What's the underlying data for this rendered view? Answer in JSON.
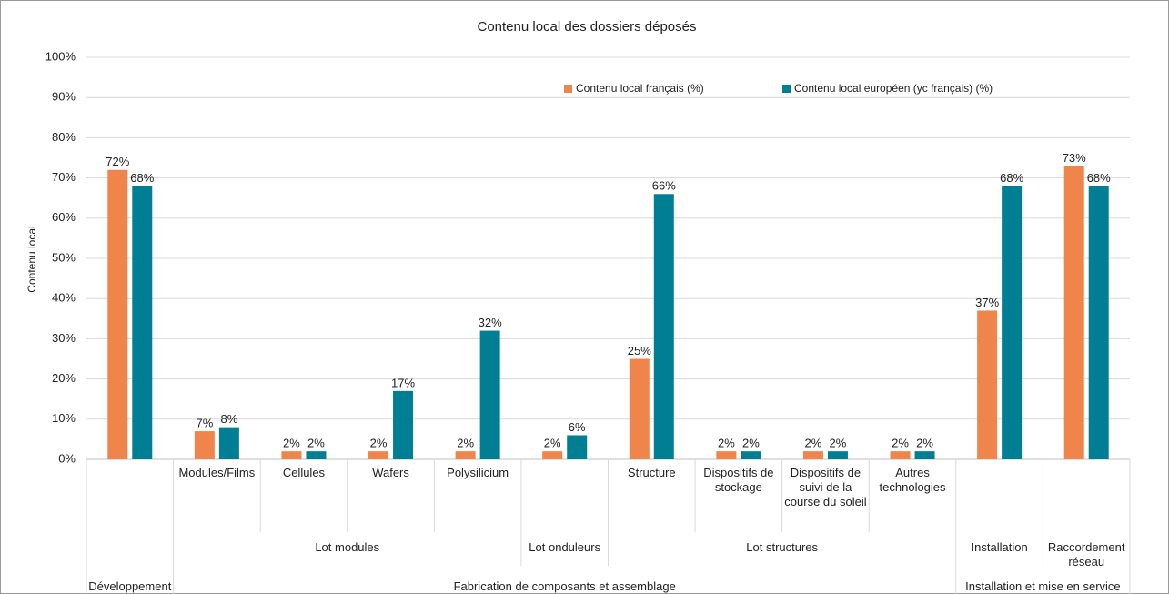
{
  "chart_data": {
    "type": "bar",
    "title": "Contenu local des dossiers déposés",
    "y_label": "Contenu local",
    "category_groups": [
      {
        "name": "Développement",
        "subgroups": [
          {
            "name": null,
            "categories": [
              null
            ]
          }
        ]
      },
      {
        "name": "Fabrication de composants et assemblage",
        "subgroups": [
          {
            "name": "Lot modules",
            "categories": [
              "Modules/Films",
              "Cellules",
              "Wafers",
              "Polysilicium"
            ]
          },
          {
            "name": "Lot onduleurs",
            "categories": [
              null
            ]
          },
          {
            "name": "Lot structures",
            "categories": [
              "Structure",
              "Dispositifs de stockage",
              "Dispositifs de suivi de la course du soleil",
              "Autres technologies"
            ]
          }
        ]
      },
      {
        "name": "Installation et mise en service",
        "subgroups": [
          {
            "name": "Installation",
            "categories": [
              null
            ]
          },
          {
            "name": "Raccordement réseau",
            "categories": [
              null
            ]
          }
        ]
      }
    ],
    "series": [
      {
        "name": "Contenu local français (%)",
        "color": "#f0854b",
        "values": [
          72,
          7,
          2,
          2,
          2,
          2,
          25,
          2,
          2,
          2,
          37,
          73
        ],
        "value_labels": [
          "72%",
          "7%",
          "2%",
          "2%",
          "2%",
          "2%",
          "25%",
          "2%",
          "2%",
          "2%",
          "37%",
          "73%"
        ]
      },
      {
        "name": "Contenu local européen (yc français) (%)",
        "color": "#007f94",
        "values": [
          68,
          8,
          2,
          17,
          32,
          6,
          66,
          2,
          2,
          2,
          68,
          68
        ],
        "value_labels": [
          "68%",
          "8%",
          "2%",
          "17%",
          "32%",
          "6%",
          "66%",
          "2%",
          "2%",
          "2%",
          "68%",
          "68%"
        ]
      }
    ],
    "ylim": [
      0,
      100
    ],
    "yticks": [
      {
        "value": 0,
        "label": "0%"
      },
      {
        "value": 10,
        "label": "10%"
      },
      {
        "value": 20,
        "label": "20%"
      },
      {
        "value": 30,
        "label": "30%"
      },
      {
        "value": 40,
        "label": "40%"
      },
      {
        "value": 50,
        "label": "50%"
      },
      {
        "value": 60,
        "label": "60%"
      },
      {
        "value": 70,
        "label": "70%"
      },
      {
        "value": 80,
        "label": "80%"
      },
      {
        "value": 90,
        "label": "90%"
      },
      {
        "value": 100,
        "label": "100%"
      }
    ],
    "grid": true,
    "legend": "top"
  }
}
